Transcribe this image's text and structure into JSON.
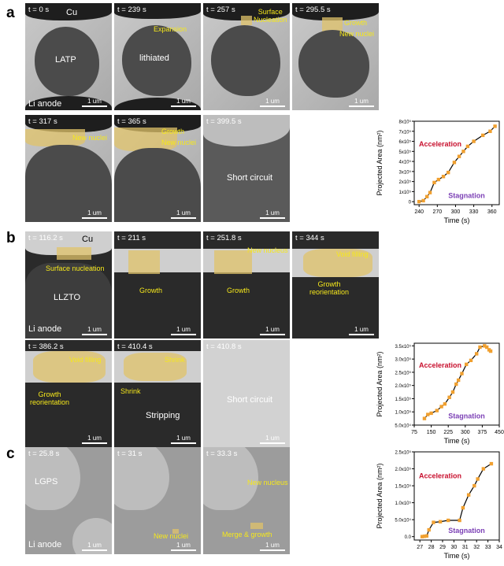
{
  "labels": [
    "a",
    "b",
    "c"
  ],
  "a": {
    "panels": [
      {
        "t": "t = 0 s",
        "texts": [
          "Cu",
          "LATP",
          "Li anode"
        ],
        "scale": "1 um"
      },
      {
        "t": "t = 239 s",
        "texts": [
          "lithiated"
        ],
        "ann": [
          "Expansion"
        ],
        "scale": "1 um"
      },
      {
        "t": "t = 257 s",
        "ann": [
          "Surface",
          "Nucleation"
        ],
        "scale": "1 um"
      },
      {
        "t": "t = 295.5 s",
        "ann": [
          "Growth",
          "New nuclei"
        ],
        "scale": "1 um"
      },
      {
        "t": "t = 317 s",
        "ann": [
          "New nuclei"
        ],
        "scale": "1 um"
      },
      {
        "t": "t = 365 s",
        "ann": [
          "Growth",
          "New nuclei"
        ],
        "scale": "1 um"
      },
      {
        "t": "t = 399.5 s",
        "texts": [
          "Short circuit"
        ],
        "scale": "1 um"
      }
    ]
  },
  "b": {
    "panels": [
      {
        "t": "t = 116.2 s",
        "texts": [
          "Cu",
          "LLZTO",
          "Li anode"
        ],
        "ann": [
          "Surface nucleation"
        ],
        "scale": "1 um"
      },
      {
        "t": "t = 211 s",
        "ann": [
          "Growth"
        ],
        "scale": "1 um"
      },
      {
        "t": "t = 251.8 s",
        "ann": [
          "New nucleus",
          "Growth"
        ],
        "scale": "1 um"
      },
      {
        "t": "t = 344 s",
        "ann": [
          "Void filling",
          "Growth",
          "reorientation"
        ],
        "scale": "1 um"
      },
      {
        "t": "t = 386.2 s",
        "ann": [
          "Void filling",
          "Growth",
          "reorientation"
        ],
        "scale": "1 um"
      },
      {
        "t": "t = 410.4 s",
        "ann": [
          "Shrink",
          "Shrink"
        ],
        "texts": [
          "Stripping"
        ],
        "scale": "1 um"
      },
      {
        "t": "t = 410.8 s",
        "texts": [
          "Short circuit"
        ],
        "scale": "1 um"
      }
    ]
  },
  "c": {
    "panels": [
      {
        "t": "t = 25.8 s",
        "texts": [
          "LGPS",
          "Li anode"
        ],
        "scale": "1 um"
      },
      {
        "t": "t = 31 s",
        "ann": [
          "New nuclei"
        ],
        "scale": "1 um"
      },
      {
        "t": "t = 33.3 s",
        "ann": [
          "New nucleus",
          "Merge & growth"
        ],
        "scale": "1 um"
      }
    ]
  },
  "chart_data": [
    {
      "type": "line",
      "xlabel": "Time (s)",
      "ylabel": "Projected Area (nm²)",
      "xlim": [
        232,
        372
      ],
      "ylim": [
        -0.3,
        8
      ],
      "xticks": [
        240,
        270,
        300,
        330,
        360
      ],
      "yticks": [
        0,
        1,
        2,
        3,
        4,
        5,
        6,
        7,
        8
      ],
      "ytick_labels": [
        "0",
        "1x10⁵",
        "2x10⁵",
        "3x10⁵",
        "4x10⁵",
        "5x10⁵",
        "6x10⁵",
        "7x10⁵",
        "8x10⁵"
      ],
      "y_unit": "x10⁵ nm²",
      "x": [
        240,
        247,
        253,
        258,
        265,
        272,
        280,
        288,
        298,
        306,
        313,
        320,
        330,
        345,
        357,
        365
      ],
      "y": [
        0,
        0.1,
        0.5,
        0.9,
        1.9,
        2.2,
        2.5,
        2.9,
        3.9,
        4.5,
        5.0,
        5.5,
        6.0,
        6.6,
        7.0,
        7.5
      ],
      "annotations": [
        "Acceleration",
        "Stagnation"
      ],
      "colors": {
        "points": "#f0a030",
        "line": "#000000",
        "acceleration": "#c8102e",
        "stagnation": "#7b3fb5"
      }
    },
    {
      "type": "line",
      "xlabel": "Time (s)",
      "ylabel": "Projected Area (nm²)",
      "xlim": [
        75,
        450
      ],
      "ylim": [
        0.5,
        3.6
      ],
      "xticks": [
        75,
        150,
        225,
        300,
        375,
        450
      ],
      "yticks": [
        0.5,
        1,
        1.5,
        2,
        2.5,
        3,
        3.5
      ],
      "ytick_labels": [
        "5.0x10⁴",
        "1.0x10⁵",
        "1.5x10⁵",
        "2.0x10⁵",
        "2.5x10⁵",
        "3.0x10⁵",
        "3.5x10⁵"
      ],
      "y_unit": "x10⁵ nm²",
      "x": [
        120,
        135,
        150,
        175,
        195,
        210,
        230,
        245,
        260,
        270,
        285,
        305,
        325,
        350,
        365,
        385,
        395,
        405,
        412
      ],
      "y": [
        0.75,
        0.9,
        0.95,
        1.05,
        1.2,
        1.3,
        1.55,
        1.75,
        2.05,
        2.2,
        2.45,
        2.8,
        2.95,
        3.2,
        3.45,
        3.5,
        3.45,
        3.35,
        3.3
      ],
      "annotations": [
        "Acceleration",
        "Stagnation"
      ],
      "colors": {
        "points": "#f0a030",
        "line": "#000000",
        "acceleration": "#c8102e",
        "stagnation": "#7b3fb5"
      }
    },
    {
      "type": "line",
      "xlabel": "Time (s)",
      "ylabel": "Projected Area (nm²)",
      "xlim": [
        26.5,
        34
      ],
      "ylim": [
        -0.1,
        2.5
      ],
      "xticks": [
        27,
        28,
        29,
        30,
        31,
        32,
        33,
        34
      ],
      "yticks": [
        0,
        0.5,
        1,
        1.5,
        2,
        2.5
      ],
      "ytick_labels": [
        "0.0",
        "5.0x10⁴",
        "1.0x10⁵",
        "1.5x10⁵",
        "2.0x10⁵",
        "2.5x10⁵"
      ],
      "y_unit": "x10⁵ nm²",
      "x": [
        27.2,
        27.4,
        27.6,
        27.8,
        28.2,
        28.8,
        29.5,
        30.5,
        30.8,
        31.3,
        31.8,
        32.1,
        32.6,
        33.3
      ],
      "y": [
        0,
        0.01,
        0.02,
        0.2,
        0.42,
        0.44,
        0.48,
        0.48,
        0.85,
        1.23,
        1.5,
        1.7,
        2.0,
        2.15
      ],
      "annotations": [
        "Acceleration",
        "Stagnation"
      ],
      "colors": {
        "points": "#f0a030",
        "line": "#000000",
        "acceleration": "#c8102e",
        "stagnation": "#7b3fb5"
      }
    }
  ]
}
